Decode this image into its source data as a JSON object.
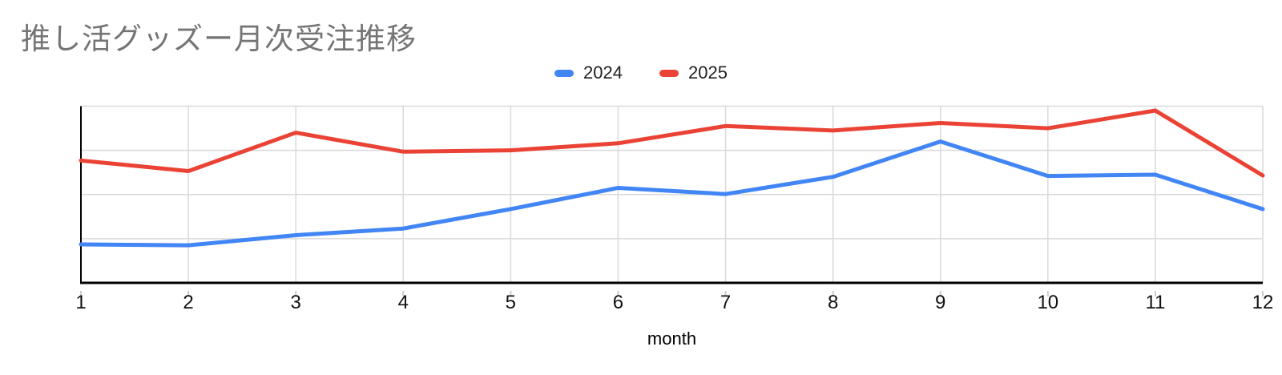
{
  "title": {
    "text": "推し活グッズー月次受注推移"
  },
  "colors": {
    "title": "#757575",
    "grid": "#D9D9D9",
    "tick_mark": "#CCCCCC",
    "axis": "#000000",
    "series_2024": "#4285F4",
    "series_2025": "#EA4335"
  },
  "x_axis": {
    "title": "month"
  },
  "chart_data": {
    "type": "line",
    "title": "推し活グッズー月次受注推移",
    "x": [
      1,
      2,
      3,
      4,
      5,
      6,
      7,
      8,
      9,
      10,
      11,
      12
    ],
    "xlabel": "month",
    "ylabel": "",
    "ylim": [
      0,
      4
    ],
    "grid": true,
    "legend_position": "top-center",
    "note": "y-axis shows no numeric labels; values estimated in gridline units (bottom axis = 0, each horizontal gridline = +1, top border = 4)",
    "series": [
      {
        "name": "2024",
        "color": "#4285F4",
        "values": [
          0.87,
          0.85,
          1.08,
          1.23,
          1.67,
          2.15,
          2.01,
          2.4,
          3.2,
          2.42,
          2.45,
          1.67
        ]
      },
      {
        "name": "2025",
        "color": "#EA4335",
        "values": [
          2.77,
          2.53,
          3.4,
          2.97,
          3.0,
          3.16,
          3.55,
          3.45,
          3.62,
          3.5,
          3.9,
          2.43
        ]
      }
    ]
  }
}
